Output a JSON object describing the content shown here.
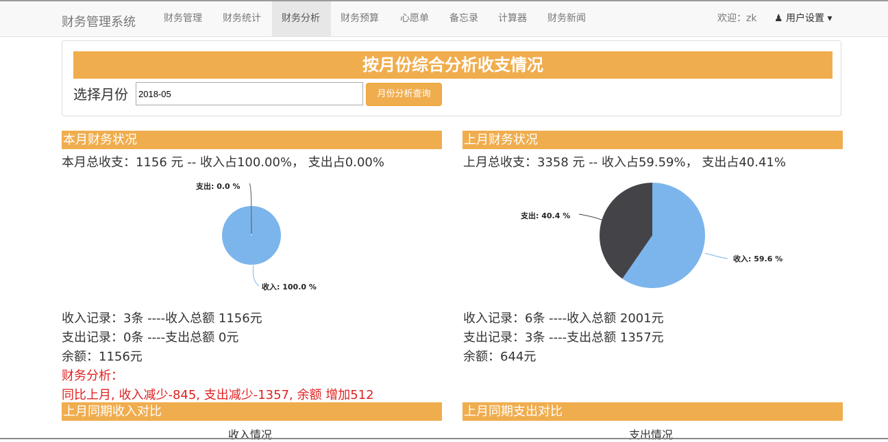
{
  "nav": {
    "brand": "财务管理系统",
    "items": [
      "财务管理",
      "财务统计",
      "财务分析",
      "财务预算",
      "心愿单",
      "备忘录",
      "计算器",
      "财务新闻"
    ],
    "welcome": "欢迎：zk",
    "user_menu": "用户设置"
  },
  "query": {
    "title": "按月份综合分析收支情况",
    "label": "选择月份",
    "month_value": "2018-05",
    "button": "月份分析查询"
  },
  "current": {
    "head": "本月财务状况",
    "summary": "本月总收支：1156 元 -- 收入占100.00%， 支出占0.00%",
    "chart_labels": {
      "expense": "支出: 0.0 %",
      "income": "收入: 100.0 %"
    },
    "income_line": "收入记录：3条 ----收入总额 1156元",
    "expense_line": "支出记录：0条 ----支出总额 0元",
    "balance_line": "余额：1156元",
    "analysis_label": "财务分析：",
    "analysis_text": "同比上月, 收入减少-845, 支出减少-1357, 余额 增加512"
  },
  "previous": {
    "head": "上月财务状况",
    "summary": "上月总收支：3358 元 -- 收入占59.59%， 支出占40.41%",
    "chart_labels": {
      "expense": "支出: 40.4 %",
      "income": "收入: 59.6 %"
    },
    "income_line": "收入记录：6条 ----收入总额 2001元",
    "expense_line": "支出记录：3条 ----支出总额 1357元",
    "balance_line": "余额：644元"
  },
  "compare": {
    "income_head": "上月同期收入对比",
    "income_sub": "收入情况",
    "expense_head": "上月同期支出对比",
    "expense_sub": "支出情况"
  },
  "chart_data": [
    {
      "type": "pie",
      "title": "本月财务状况",
      "slices": [
        {
          "name": "收入",
          "value": 100.0
        },
        {
          "name": "支出",
          "value": 0.0
        }
      ]
    },
    {
      "type": "pie",
      "title": "上月财务状况",
      "slices": [
        {
          "name": "收入",
          "value": 59.6
        },
        {
          "name": "支出",
          "value": 40.4
        }
      ]
    }
  ],
  "colors": {
    "accent": "#f0ad4e",
    "income": "#7cb5ec",
    "expense": "#434348",
    "alert": "#e02020"
  }
}
